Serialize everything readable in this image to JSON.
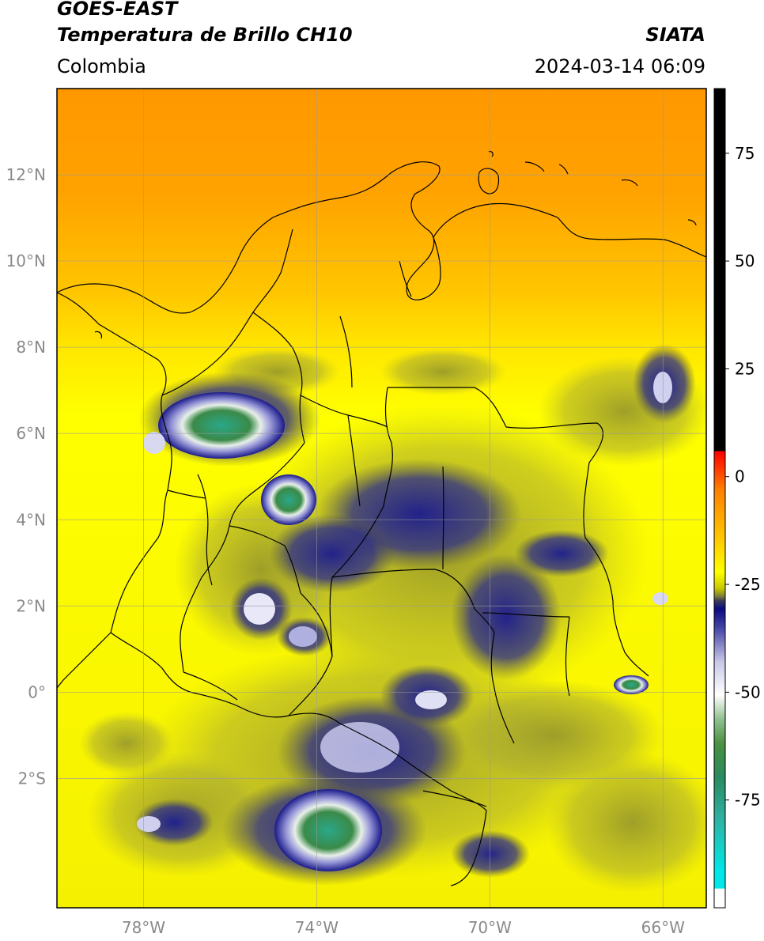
{
  "header": {
    "title_line1": "GOES-EAST",
    "title_line2": "Temperatura de Brillo CH10",
    "region": "Colombia",
    "source": "SIATA",
    "datetime": "2024-03-14 06:09"
  },
  "map": {
    "lon_range": [
      -80,
      -65
    ],
    "lat_range": [
      -5,
      14
    ],
    "lat_ticks": [
      {
        "value": 12,
        "label": "12°N"
      },
      {
        "value": 10,
        "label": "10°N"
      },
      {
        "value": 8,
        "label": "8°N"
      },
      {
        "value": 6,
        "label": "6°N"
      },
      {
        "value": 4,
        "label": "4°N"
      },
      {
        "value": 2,
        "label": "2°N"
      },
      {
        "value": 0,
        "label": "0°"
      },
      {
        "value": -2,
        "label": "2°S"
      }
    ],
    "lon_ticks": [
      {
        "value": -78,
        "label": "78°W"
      },
      {
        "value": -74,
        "label": "74°W"
      },
      {
        "value": -70,
        "label": "70°W"
      },
      {
        "value": -66,
        "label": "66°W"
      }
    ],
    "colors": {
      "warm_orange": "#ff9a00",
      "warm_yellow": "#ffff00",
      "olive": "#a6a629",
      "navy": "#1a1a80",
      "white": "#ffffff",
      "green": "#2e8b57",
      "teal": "#2ab39a"
    }
  },
  "colorbar": {
    "range": [
      -100,
      90
    ],
    "ticks": [
      {
        "value": 75,
        "label": "75"
      },
      {
        "value": 50,
        "label": "50"
      },
      {
        "value": 25,
        "label": "25"
      },
      {
        "value": 0,
        "label": "0"
      },
      {
        "value": -25,
        "label": "-25"
      },
      {
        "value": -50,
        "label": "-50"
      },
      {
        "value": -75,
        "label": "-75"
      }
    ]
  }
}
